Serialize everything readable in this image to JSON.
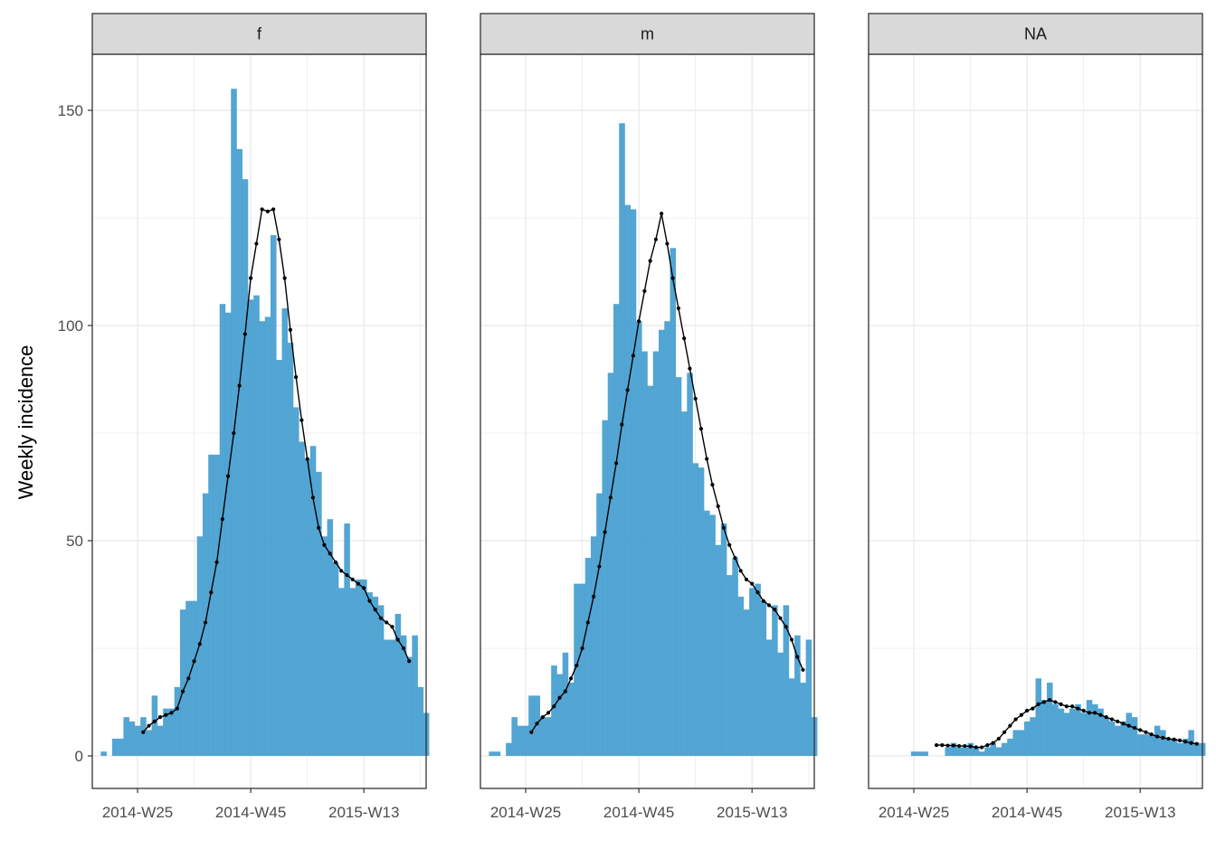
{
  "chart_data": {
    "type": "bar",
    "ylabel": "Weekly incidence",
    "xlabel": "",
    "ylim": [
      -8,
      165
    ],
    "yticks": [
      0,
      50,
      100,
      150
    ],
    "x_range_weeks": [
      -2,
      57
    ],
    "xticks": [
      {
        "label": "2014-W25",
        "week": 6
      },
      {
        "label": "2014-W45",
        "week": 26
      },
      {
        "label": "2015-W13",
        "week": 46
      }
    ],
    "week_index_note": "week 0 = 2014-W19",
    "colors": {
      "bar": "#4aa0d1",
      "line": "#000000",
      "strip": "#d9d9d9",
      "grid": "#ebebeb"
    },
    "facets": [
      {
        "name": "f",
        "start_week": 0,
        "counts": [
          1,
          0,
          4,
          4,
          9,
          8,
          7,
          9,
          6,
          14,
          7,
          11,
          11,
          16,
          34,
          36,
          36,
          51,
          61,
          70,
          70,
          105,
          103,
          155,
          141,
          134,
          106,
          107,
          101,
          102,
          121,
          92,
          104,
          96,
          81,
          73,
          69,
          72,
          66,
          51,
          55,
          45,
          39,
          54,
          39,
          41,
          41,
          38,
          37,
          35,
          27,
          27,
          33,
          28,
          23,
          28,
          16,
          10
        ],
        "trend_start_week": 7,
        "trend": [
          5.5,
          7,
          8,
          9,
          9.5,
          10,
          11,
          15,
          18,
          22,
          26,
          31,
          38,
          45,
          55,
          65,
          75,
          86,
          98,
          111,
          119,
          127,
          126.5,
          127,
          120,
          111,
          99,
          88,
          78,
          69,
          60,
          53,
          49,
          47,
          45,
          43,
          42,
          41,
          40,
          39,
          36,
          34,
          32,
          31,
          30,
          27,
          25,
          22
        ]
      },
      {
        "name": "m",
        "start_week": 0,
        "counts": [
          1,
          1,
          0,
          3,
          9,
          7,
          7,
          14,
          14,
          9,
          9,
          21,
          19,
          24,
          17,
          40,
          40,
          46,
          51,
          61,
          78,
          89,
          105,
          147,
          128,
          127,
          101,
          94,
          86,
          94,
          99,
          101,
          118,
          88,
          80,
          89,
          68,
          67,
          57,
          56,
          49,
          54,
          42,
          46,
          37,
          34,
          39,
          40,
          36,
          27,
          35,
          24,
          35,
          18,
          28,
          17,
          27,
          9
        ],
        "trend_start_week": 7,
        "trend": [
          5.5,
          7.5,
          9,
          10,
          11.5,
          13.5,
          15,
          18,
          21,
          25,
          31,
          37,
          44,
          52,
          60,
          68,
          77,
          85,
          93,
          101,
          108,
          115,
          120,
          126,
          119,
          111,
          104,
          97,
          90,
          83,
          76,
          69,
          63,
          58,
          53,
          49,
          46,
          43,
          41,
          40,
          38,
          36,
          35,
          34,
          32,
          30,
          27,
          23,
          20
        ]
      },
      {
        "name": "NA",
        "start_week": 6,
        "counts": [
          1,
          1,
          1,
          0,
          0,
          0,
          2,
          3,
          2,
          2,
          3,
          2,
          1,
          2,
          3,
          2,
          3,
          4,
          6,
          6,
          8,
          9,
          18,
          13,
          17,
          12,
          11,
          10,
          11,
          12,
          10,
          13,
          12,
          11,
          9,
          8,
          7,
          8,
          10,
          9,
          5,
          5,
          5,
          7,
          6,
          4,
          4,
          3,
          4,
          6,
          3,
          3
        ],
        "trend_start_week": 10,
        "trend": [
          2.5,
          2.5,
          2.4,
          2.4,
          2.3,
          2.3,
          2.2,
          2,
          2,
          2.5,
          3,
          4,
          5.5,
          7,
          8.5,
          9.5,
          10.5,
          11,
          12,
          12.5,
          13,
          12.5,
          12,
          11.5,
          11.5,
          11,
          10.5,
          10,
          10,
          9.5,
          9,
          8.5,
          8,
          7.5,
          7,
          6.5,
          6,
          5.5,
          5,
          4.5,
          4.2,
          4,
          3.8,
          3.6,
          3.3,
          3,
          2.8
        ]
      }
    ]
  }
}
